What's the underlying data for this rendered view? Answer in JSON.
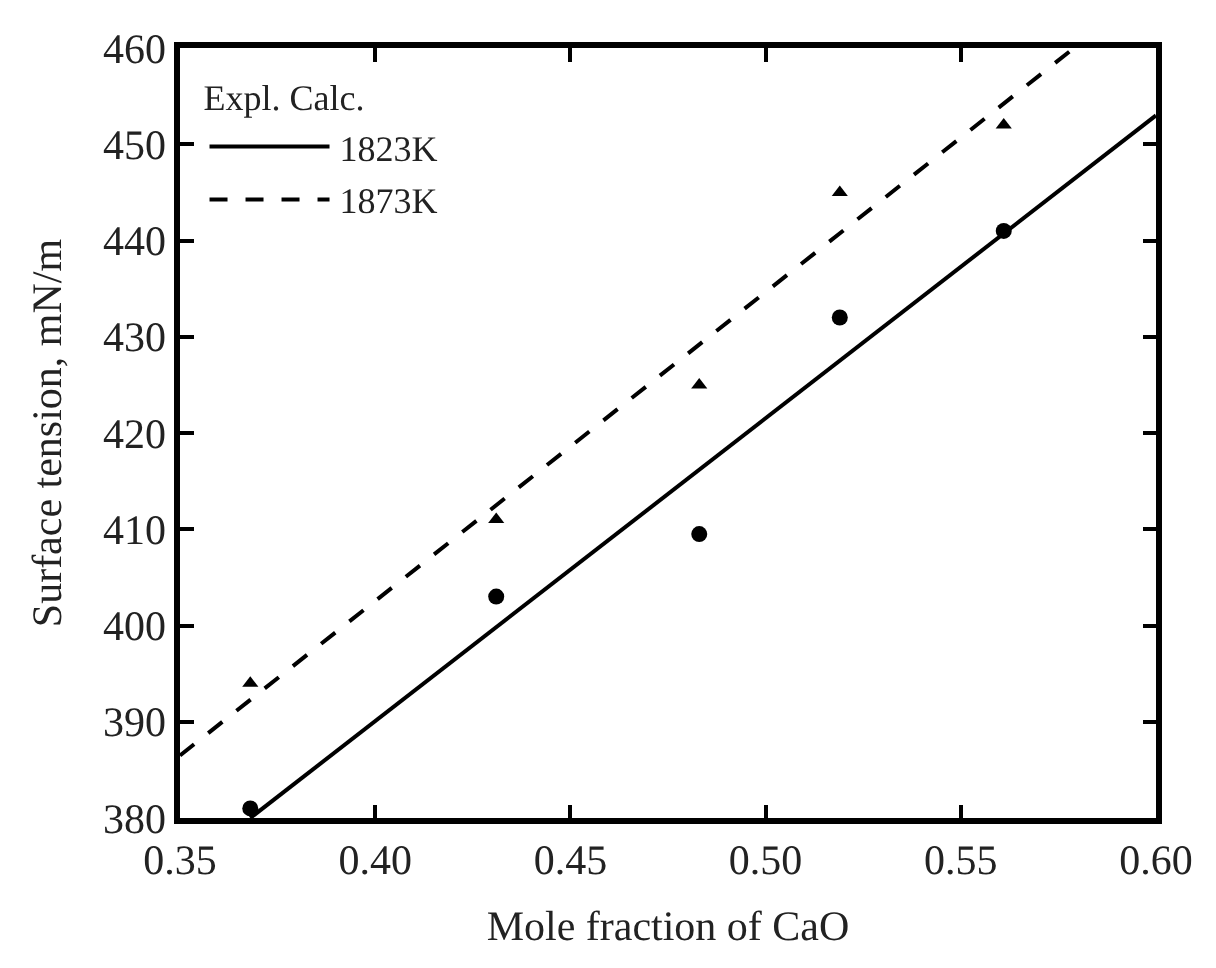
{
  "chart_data": {
    "type": "scatter",
    "xlabel": "Mole fraction of CaO",
    "ylabel": "Surface tension, mN/m",
    "legend_title": "Expl. Calc.",
    "legend": "top left",
    "xlim": [
      0.35,
      0.6
    ],
    "xticks": [
      0.35,
      {
        "value": 0.4,
        "label": "0.40"
      },
      0.45,
      {
        "value": 0.5,
        "label": "0.50"
      },
      0.55,
      {
        "value": 0.6,
        "label": "0.60"
      }
    ],
    "ylim": [
      380,
      460
    ],
    "yticks": [
      380,
      390,
      400,
      410,
      420,
      430,
      440,
      450,
      460
    ],
    "series": [
      {
        "marker": "circle",
        "color": "#000000",
        "x": [
          0.368,
          0.431,
          0.483,
          0.519,
          0.561
        ],
        "values": [
          381,
          403,
          409.5,
          432,
          441
        ]
      },
      {
        "marker": "triangle",
        "color": "#000000",
        "x": [
          0.368,
          0.431,
          0.483,
          0.519,
          0.561
        ],
        "values": [
          394,
          411,
          425,
          445,
          452
        ]
      },
      {
        "type": "line",
        "name": "1823K",
        "line_style": "solid",
        "color": "#000000",
        "x": [
          0.368,
          0.6
        ],
        "values": [
          380,
          453
        ]
      },
      {
        "type": "line",
        "name": "1873K",
        "line_style": "dashed",
        "color": "#000000",
        "x": [
          0.35,
          0.579
        ],
        "values": [
          386.5,
          460
        ]
      }
    ]
  }
}
